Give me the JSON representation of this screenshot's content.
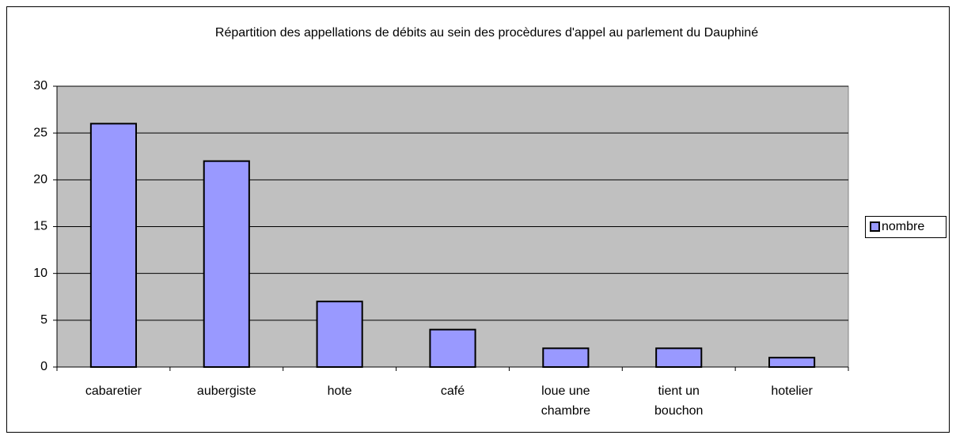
{
  "chart_data": {
    "type": "bar",
    "title": "Répartition des appellations de débits au sein des procèdures d'appel au parlement du Dauphiné",
    "categories": [
      "cabaretier",
      "aubergiste",
      "hote",
      "café",
      "loue une chambre",
      "tient un bouchon",
      "hotelier"
    ],
    "series": [
      {
        "name": "nombre",
        "color": "#9999ff",
        "values": [
          26,
          22,
          7,
          4,
          2,
          2,
          1
        ]
      }
    ],
    "ylim": [
      0,
      30
    ],
    "yticks": [
      0,
      5,
      10,
      15,
      20,
      25,
      30
    ],
    "grid": true,
    "legend": "right"
  }
}
